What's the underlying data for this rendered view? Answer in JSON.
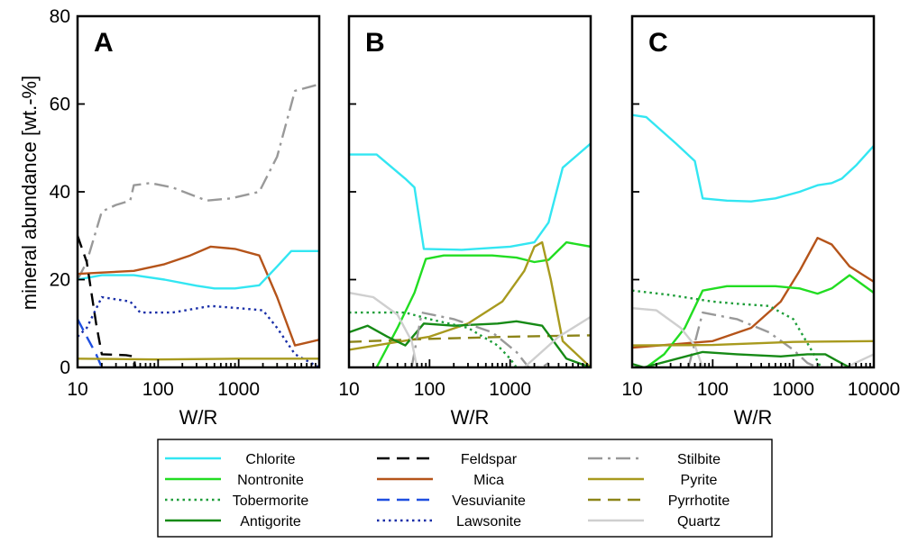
{
  "chart_data": {
    "type": "line",
    "ylabel": "mineral abundance [wt.-%]",
    "ylim": [
      0,
      80
    ],
    "yticks": [
      "0",
      "20",
      "40",
      "60",
      "80"
    ],
    "xscale": "log",
    "legend_position": "bottom",
    "styles": {
      "Chlorite": {
        "color": "#33e6f2",
        "dash": "solid"
      },
      "Nontronite": {
        "color": "#22dd22",
        "dash": "solid"
      },
      "Tobermorite": {
        "color": "#1f9e3a",
        "dash": "dotted"
      },
      "Antigorite": {
        "color": "#168a16",
        "dash": "solid"
      },
      "Feldspar": {
        "color": "#000000",
        "dash": "dashed"
      },
      "Mica": {
        "color": "#b5541a",
        "dash": "solid"
      },
      "Vesuvianite": {
        "color": "#1f4fe0",
        "dash": "dashed"
      },
      "Lawsonite": {
        "color": "#1a2fa8",
        "dash": "dotted"
      },
      "Stilbite": {
        "color": "#999999",
        "dash": "dashdot"
      },
      "Pyrite": {
        "color": "#a89a1e",
        "dash": "solid"
      },
      "Pyrrhotite": {
        "color": "#8c8418",
        "dash": "dashed"
      },
      "Quartz": {
        "color": "#cfcfcf",
        "dash": "solid"
      }
    },
    "legend": [
      [
        "Chlorite",
        "Feldspar",
        "Stilbite"
      ],
      [
        "Nontronite",
        "Mica",
        "Pyrite"
      ],
      [
        "Tobermorite",
        "Vesuvianite",
        "Pyrrhotite"
      ],
      [
        "Antigorite",
        "Lawsonite",
        "Quartz"
      ]
    ],
    "panels": [
      {
        "label": "A",
        "xlabel": "W/R",
        "xlim": [
          10,
          10000
        ],
        "xticks": [
          "10",
          "100",
          "1000"
        ],
        "series": [
          {
            "name": "Stilbite",
            "points": [
              [
                10,
                20
              ],
              [
                13,
                24
              ],
              [
                20,
                35.5
              ],
              [
                30,
                37
              ],
              [
                45,
                38
              ],
              [
                50,
                41.5
              ],
              [
                80,
                42
              ],
              [
                150,
                41
              ],
              [
                400,
                38
              ],
              [
                800,
                38.5
              ],
              [
                1800,
                40
              ],
              [
                3000,
                48
              ],
              [
                5000,
                63
              ],
              [
                10000,
                64.5
              ]
            ]
          },
          {
            "name": "Mica",
            "points": [
              [
                10,
                21.3
              ],
              [
                20,
                21.6
              ],
              [
                50,
                22
              ],
              [
                120,
                23.5
              ],
              [
                250,
                25.5
              ],
              [
                450,
                27.5
              ],
              [
                900,
                27
              ],
              [
                1800,
                25.5
              ],
              [
                3000,
                16
              ],
              [
                5000,
                5
              ],
              [
                10000,
                6.3
              ]
            ]
          },
          {
            "name": "Chlorite",
            "points": [
              [
                10,
                20
              ],
              [
                20,
                21
              ],
              [
                50,
                21
              ],
              [
                120,
                20
              ],
              [
                300,
                18.6
              ],
              [
                500,
                18
              ],
              [
                900,
                18
              ],
              [
                1800,
                18.7
              ],
              [
                3000,
                23
              ],
              [
                4500,
                26.5
              ],
              [
                10000,
                26.5
              ]
            ]
          },
          {
            "name": "Lawsonite",
            "points": [
              [
                10,
                7
              ],
              [
                13,
                9
              ],
              [
                20,
                16
              ],
              [
                30,
                15.5
              ],
              [
                45,
                15
              ],
              [
                60,
                12.5
              ],
              [
                150,
                12.5
              ],
              [
                450,
                14
              ],
              [
                1000,
                13.5
              ],
              [
                2000,
                13
              ],
              [
                3000,
                9
              ],
              [
                5000,
                3
              ],
              [
                10000,
                0
              ]
            ]
          },
          {
            "name": "Feldspar",
            "points": [
              [
                10,
                30
              ],
              [
                13,
                24
              ],
              [
                17,
                10
              ],
              [
                20,
                3
              ],
              [
                40,
                2.8
              ],
              [
                50,
                2.5
              ],
              [
                52,
                0
              ]
            ]
          },
          {
            "name": "Vesuvianite",
            "points": [
              [
                10,
                11
              ],
              [
                13,
                7
              ],
              [
                17,
                3
              ],
              [
                20,
                0
              ]
            ]
          },
          {
            "name": "Pyrite",
            "points": [
              [
                10,
                2
              ],
              [
                100,
                1.8
              ],
              [
                1000,
                2
              ],
              [
                10000,
                2
              ]
            ]
          }
        ]
      },
      {
        "label": "B",
        "xlabel": "W/R",
        "xlim": [
          10,
          10000
        ],
        "xticks": [
          "10",
          "100",
          "1000"
        ],
        "series": [
          {
            "name": "Chlorite",
            "points": [
              [
                10,
                48.5
              ],
              [
                22,
                48.5
              ],
              [
                50,
                43
              ],
              [
                65,
                41
              ],
              [
                85,
                27
              ],
              [
                250,
                26.8
              ],
              [
                1000,
                27.5
              ],
              [
                2000,
                28.5
              ],
              [
                3000,
                33
              ],
              [
                4500,
                45.5
              ],
              [
                10000,
                51
              ]
            ]
          },
          {
            "name": "Nontronite",
            "points": [
              [
                22,
                0
              ],
              [
                40,
                9
              ],
              [
                65,
                17
              ],
              [
                90,
                24.7
              ],
              [
                150,
                25.5
              ],
              [
                600,
                25.5
              ],
              [
                1200,
                25
              ],
              [
                2000,
                24
              ],
              [
                3000,
                24.5
              ],
              [
                5000,
                28.5
              ],
              [
                10000,
                27.5
              ]
            ]
          },
          {
            "name": "Pyrite",
            "points": [
              [
                10,
                4
              ],
              [
                100,
                7
              ],
              [
                300,
                10
              ],
              [
                800,
                15
              ],
              [
                1500,
                22
              ],
              [
                2000,
                27.5
              ],
              [
                2500,
                28.5
              ],
              [
                3200,
                20
              ],
              [
                4500,
                6
              ],
              [
                10000,
                0
              ]
            ]
          },
          {
            "name": "Pyrrhotite",
            "points": [
              [
                10,
                5.8
              ],
              [
                100,
                6.5
              ],
              [
                1000,
                7
              ],
              [
                10000,
                7.3
              ]
            ]
          },
          {
            "name": "Antigorite",
            "points": [
              [
                10,
                8
              ],
              [
                17,
                9.5
              ],
              [
                30,
                7
              ],
              [
                50,
                5
              ],
              [
                85,
                10
              ],
              [
                200,
                9.5
              ],
              [
                700,
                10
              ],
              [
                1200,
                10.5
              ],
              [
                2500,
                9.5
              ],
              [
                5000,
                2
              ],
              [
                10000,
                0
              ]
            ]
          },
          {
            "name": "Tobermorite",
            "points": [
              [
                10,
                12.5
              ],
              [
                50,
                12.5
              ],
              [
                100,
                11
              ],
              [
                300,
                9
              ],
              [
                700,
                5
              ],
              [
                1000,
                2
              ],
              [
                1200,
                0
              ]
            ]
          },
          {
            "name": "Stilbite",
            "points": [
              [
                60,
                0
              ],
              [
                80,
                12.5
              ],
              [
                200,
                11
              ],
              [
                600,
                8
              ],
              [
                1200,
                3.5
              ],
              [
                1700,
                0
              ],
              [
                2500,
                0
              ],
              [
                3000,
                1
              ]
            ]
          },
          {
            "name": "Quartz",
            "points": [
              [
                10,
                17
              ],
              [
                20,
                16
              ],
              [
                40,
                12
              ],
              [
                60,
                6
              ],
              [
                70,
                0
              ],
              [
                1500,
                0
              ],
              [
                4000,
                7
              ],
              [
                10000,
                11.5
              ]
            ]
          }
        ]
      },
      {
        "label": "C",
        "xlabel": "W/R",
        "xlim": [
          10,
          10000
        ],
        "xticks": [
          "10",
          "100",
          "1000",
          "10000"
        ],
        "series": [
          {
            "name": "Chlorite",
            "points": [
              [
                10,
                57.5
              ],
              [
                15,
                57
              ],
              [
                35,
                51
              ],
              [
                60,
                47
              ],
              [
                75,
                38.5
              ],
              [
                150,
                38
              ],
              [
                300,
                37.8
              ],
              [
                600,
                38.5
              ],
              [
                1200,
                40
              ],
              [
                2000,
                41.5
              ],
              [
                3000,
                42
              ],
              [
                4000,
                43
              ],
              [
                6000,
                46
              ],
              [
                10000,
                50.5
              ]
            ]
          },
          {
            "name": "Mica",
            "points": [
              [
                10,
                4.5
              ],
              [
                100,
                6
              ],
              [
                300,
                9
              ],
              [
                700,
                15
              ],
              [
                1200,
                22
              ],
              [
                2000,
                29.5
              ],
              [
                3000,
                28
              ],
              [
                5000,
                23
              ],
              [
                10000,
                19.5
              ]
            ]
          },
          {
            "name": "Nontronite",
            "points": [
              [
                10,
                0
              ],
              [
                15,
                0
              ],
              [
                25,
                3
              ],
              [
                45,
                9
              ],
              [
                75,
                17.5
              ],
              [
                150,
                18.5
              ],
              [
                600,
                18.5
              ],
              [
                1200,
                18
              ],
              [
                2000,
                16.8
              ],
              [
                3000,
                18
              ],
              [
                5000,
                21
              ],
              [
                10000,
                17
              ]
            ]
          },
          {
            "name": "Tobermorite",
            "points": [
              [
                10,
                17.5
              ],
              [
                30,
                16.5
              ],
              [
                100,
                15
              ],
              [
                200,
                14.5
              ],
              [
                500,
                14
              ],
              [
                1000,
                11
              ],
              [
                1800,
                3
              ],
              [
                2200,
                0
              ]
            ]
          },
          {
            "name": "Stilbite",
            "points": [
              [
                50,
                0
              ],
              [
                75,
                12.5
              ],
              [
                200,
                11
              ],
              [
                500,
                8
              ],
              [
                1000,
                4
              ],
              [
                1500,
                1
              ],
              [
                2000,
                0
              ]
            ]
          },
          {
            "name": "Quartz",
            "points": [
              [
                10,
                13.5
              ],
              [
                20,
                13
              ],
              [
                40,
                9
              ],
              [
                60,
                5
              ],
              [
                75,
                0
              ],
              [
                4500,
                0
              ],
              [
                10000,
                3
              ]
            ]
          },
          {
            "name": "Pyrite",
            "points": [
              [
                10,
                5
              ],
              [
                100,
                5.1
              ],
              [
                1000,
                5.8
              ],
              [
                10000,
                6
              ]
            ]
          },
          {
            "name": "Antigorite",
            "points": [
              [
                10,
                0.8
              ],
              [
                14,
                0
              ],
              [
                75,
                3.5
              ],
              [
                200,
                3
              ],
              [
                700,
                2.5
              ],
              [
                1500,
                3
              ],
              [
                2500,
                3
              ],
              [
                3500,
                1.5
              ],
              [
                5000,
                0
              ]
            ]
          }
        ]
      }
    ]
  }
}
